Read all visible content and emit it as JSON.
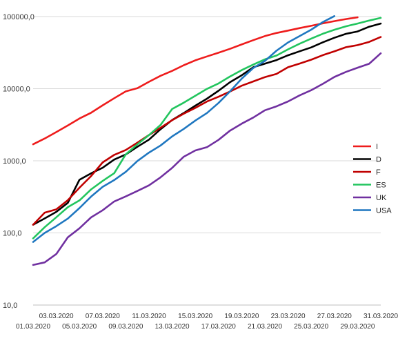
{
  "chart_data": {
    "type": "line",
    "yscale": "log",
    "ylim": [
      10,
      100000
    ],
    "grid": true,
    "legend_position": "right",
    "title": "",
    "xlabel": "",
    "ylabel": "",
    "y_tick_labels": [
      "10,0",
      "100,0",
      "1000,0",
      "10000,0",
      "100000,0"
    ],
    "y_tick_values": [
      10,
      100,
      1000,
      10000,
      100000
    ],
    "x": [
      "01.03.2020",
      "02.03.2020",
      "03.03.2020",
      "04.03.2020",
      "05.03.2020",
      "06.03.2020",
      "07.03.2020",
      "08.03.2020",
      "09.03.2020",
      "10.03.2020",
      "11.03.2020",
      "12.03.2020",
      "13.03.2020",
      "14.03.2020",
      "15.03.2020",
      "16.03.2020",
      "17.03.2020",
      "18.03.2020",
      "19.03.2020",
      "20.03.2020",
      "21.03.2020",
      "22.03.2020",
      "23.03.2020",
      "24.03.2020",
      "25.03.2020",
      "26.03.2020",
      "27.03.2020",
      "28.03.2020",
      "29.03.2020",
      "30.03.2020",
      "31.03.2020"
    ],
    "x_tick_labels_upper": [
      "03.03.2020",
      "07.03.2020",
      "11.03.2020",
      "15.03.2020",
      "19.03.2020",
      "23.03.2020",
      "27.03.2020",
      "31.03.2020"
    ],
    "x_tick_labels_lower": [
      "01.03.2020",
      "05.03.2020",
      "09.03.2020",
      "13.03.2020",
      "17.03.2020",
      "21.03.2020",
      "25.03.2020",
      "29.03.2020"
    ],
    "series": [
      {
        "name": "I",
        "color": "#ee1c1c",
        "values": [
          1694,
          2036,
          2502,
          3089,
          3858,
          4636,
          5883,
          7375,
          9172,
          10149,
          12462,
          15113,
          17660,
          21157,
          24747,
          27980,
          31506,
          35713,
          41035,
          47021,
          53578,
          59138,
          63927,
          69176,
          74386,
          80589,
          86498,
          92472,
          97689,
          null,
          null
        ]
      },
      {
        "name": "D",
        "color": "#000000",
        "values": [
          130,
          159,
          196,
          262,
          545,
          670,
          800,
          1040,
          1224,
          1565,
          1966,
          2745,
          3675,
          4599,
          5813,
          7272,
          9367,
          12327,
          15320,
          19848,
          22213,
          24873,
          29056,
          32986,
          37323,
          43938,
          50871,
          57695,
          62095,
          72383,
          80000
        ]
      },
      {
        "name": "F",
        "color": "#c00000",
        "values": [
          130,
          191,
          212,
          285,
          423,
          613,
          949,
          1209,
          1412,
          1784,
          2281,
          2876,
          3661,
          4499,
          5423,
          6633,
          7730,
          9134,
          10995,
          12612,
          14459,
          16018,
          19856,
          22304,
          25233,
          29155,
          32964,
          37575,
          40174,
          44550,
          52128
        ]
      },
      {
        "name": "ES",
        "color": "#22c55e",
        "values": [
          84,
          120,
          165,
          228,
          282,
          401,
          525,
          674,
          1231,
          1695,
          2277,
          3146,
          5232,
          6391,
          7988,
          9942,
          11826,
          14769,
          18077,
          21571,
          25496,
          28768,
          35136,
          42058,
          49515,
          57786,
          65719,
          73235,
          80110,
          87956,
          95923
        ]
      },
      {
        "name": "UK",
        "color": "#7030a0",
        "values": [
          36,
          39,
          51,
          87,
          116,
          164,
          206,
          273,
          321,
          382,
          456,
          590,
          798,
          1140,
          1391,
          1543,
          1950,
          2626,
          3269,
          3983,
          5018,
          5683,
          6650,
          8077,
          9529,
          11658,
          14543,
          17089,
          19522,
          22141,
          31000
        ]
      },
      {
        "name": "USA",
        "color": "#1f77c0",
        "values": [
          75,
          100,
          124,
          158,
          221,
          319,
          435,
          541,
          704,
          994,
          1301,
          1630,
          2183,
          2770,
          3613,
          4596,
          6344,
          9197,
          13779,
          19383,
          24207,
          33566,
          43734,
          53740,
          65778,
          83836,
          101657,
          null,
          null,
          null,
          null
        ]
      }
    ]
  }
}
